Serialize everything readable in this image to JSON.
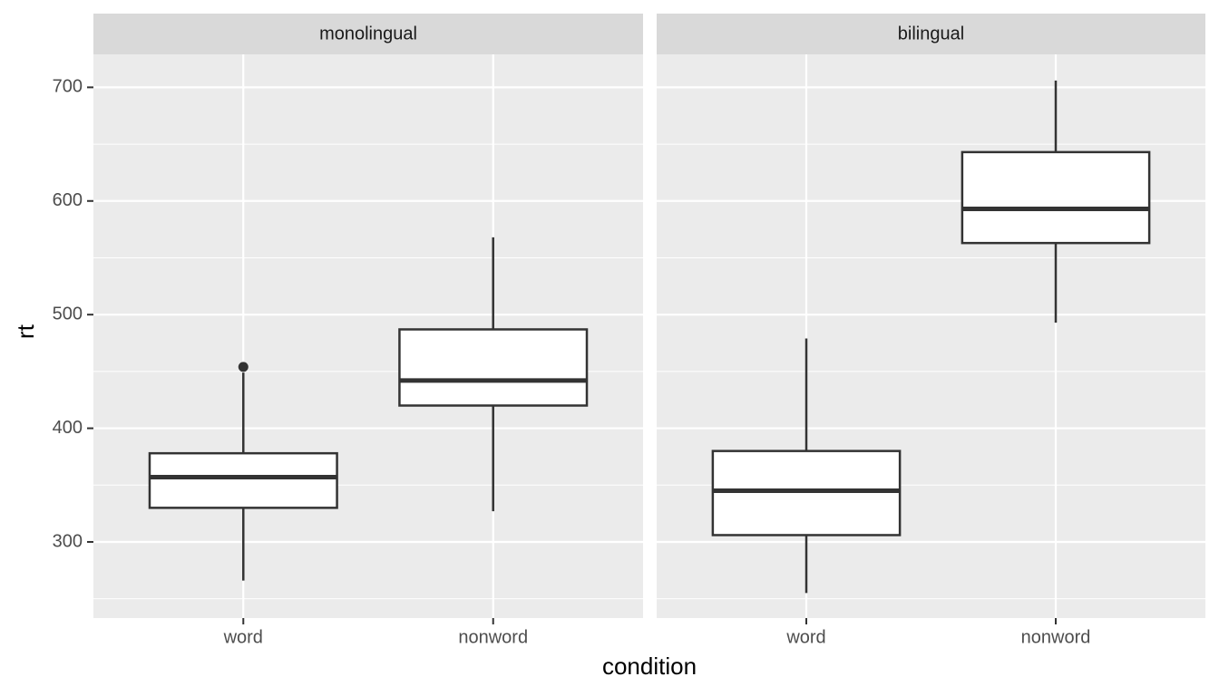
{
  "x_label": "condition",
  "y_label": "rt",
  "chart_data": [
    {
      "type": "box",
      "title": "monolingual",
      "categories": [
        "word",
        "nonword"
      ],
      "boxes": [
        {
          "min": 266,
          "q1": 330,
          "median": 357,
          "q3": 378,
          "max": 449,
          "outliers": [
            454
          ]
        },
        {
          "min": 327,
          "q1": 420,
          "median": 442,
          "q3": 487,
          "max": 568,
          "outliers": []
        }
      ],
      "ylim": [
        233,
        729
      ],
      "yticks": [
        300,
        400,
        500,
        600,
        700
      ],
      "grid": true,
      "color": "#ffffff"
    },
    {
      "type": "box",
      "title": "bilingual",
      "categories": [
        "word",
        "nonword"
      ],
      "boxes": [
        {
          "min": 255,
          "q1": 306,
          "median": 345,
          "q3": 380,
          "max": 479,
          "outliers": []
        },
        {
          "min": 493,
          "q1": 563,
          "median": 593,
          "q3": 643,
          "max": 706,
          "outliers": []
        }
      ],
      "ylim": [
        233,
        729
      ],
      "yticks": [
        300,
        400,
        500,
        600,
        700
      ],
      "grid": true,
      "color": "#ffffff"
    }
  ]
}
